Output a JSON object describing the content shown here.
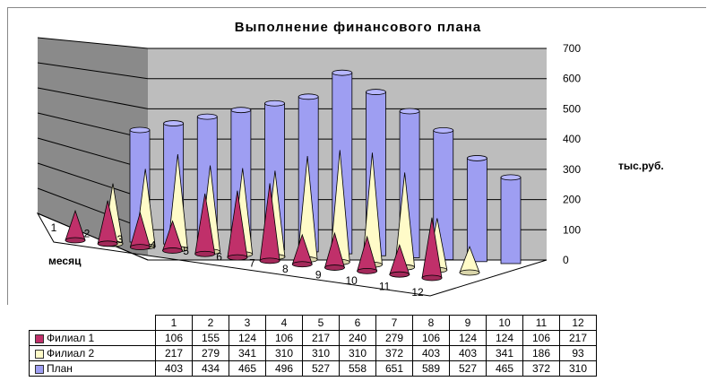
{
  "chart_data": {
    "type": "bar",
    "title": "Выполнение финансового плана",
    "xlabel": "месяц",
    "ylabel": "тыс.руб.",
    "ylim": [
      0,
      700
    ],
    "yticks": [
      0,
      100,
      200,
      300,
      400,
      500,
      600,
      700
    ],
    "categories": [
      "1",
      "2",
      "3",
      "4",
      "5",
      "6",
      "7",
      "8",
      "9",
      "10",
      "11",
      "12"
    ],
    "series": [
      {
        "name": "Филиал 1",
        "shape": "cone",
        "color": "#c0306a",
        "values": [
          106,
          155,
          124,
          106,
          217,
          240,
          279,
          106,
          124,
          124,
          106,
          217
        ]
      },
      {
        "name": "Филиал 2",
        "shape": "cone",
        "color": "#fffbc8",
        "values": [
          217,
          279,
          341,
          310,
          310,
          310,
          372,
          403,
          403,
          341,
          186,
          93
        ]
      },
      {
        "name": "План",
        "shape": "cylinder",
        "color": "#9e9ef2",
        "values": [
          403,
          434,
          465,
          496,
          527,
          558,
          651,
          589,
          527,
          465,
          372,
          310
        ]
      }
    ],
    "grid": true,
    "legend": "data table"
  }
}
